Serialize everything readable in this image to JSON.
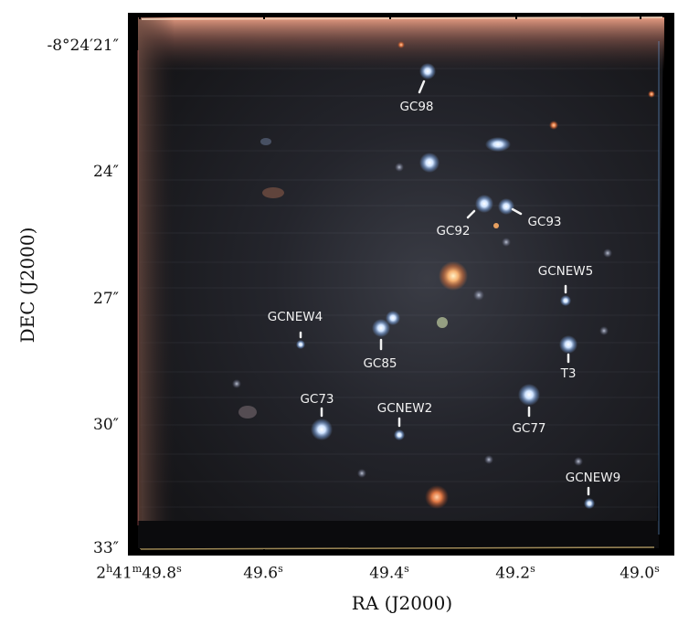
{
  "axes": {
    "x_label": "RA (J2000)",
    "y_label": "DEC (J2000)",
    "x_ticks": [
      {
        "text": "2h41m49.8s"
      },
      {
        "text": "49.6s"
      },
      {
        "text": "49.4s"
      },
      {
        "text": "49.2s"
      },
      {
        "text": "49.0s"
      }
    ],
    "y_ticks": [
      {
        "text": "-8°24′21″"
      },
      {
        "text": "24″"
      },
      {
        "text": "27″"
      },
      {
        "text": "30″"
      },
      {
        "text": "33″"
      }
    ]
  },
  "sources": [
    {
      "name": "GC98"
    },
    {
      "name": "GC92"
    },
    {
      "name": "GC93"
    },
    {
      "name": "GCNEW5"
    },
    {
      "name": "GCNEW4"
    },
    {
      "name": "GC85"
    },
    {
      "name": "T3"
    },
    {
      "name": "GC73"
    },
    {
      "name": "GCNEW2"
    },
    {
      "name": "GC77"
    },
    {
      "name": "GCNEW9"
    }
  ],
  "colors": {
    "background": "#0c0c0e",
    "label": "#f2f2f2",
    "blue_source": "#bcd8ff",
    "orange_source": "#f5a060",
    "border_glow": "#f7a58a"
  }
}
